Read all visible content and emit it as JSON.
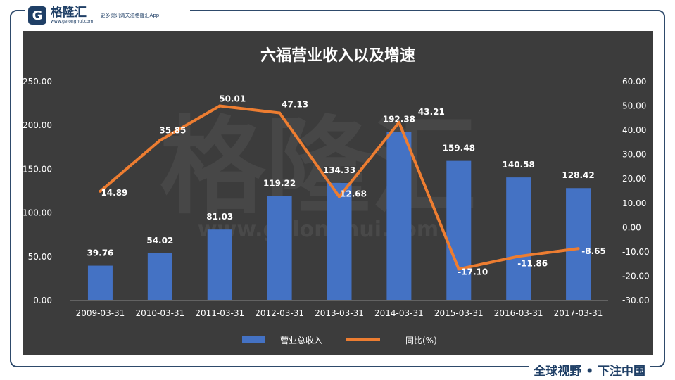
{
  "brand": {
    "name": "格隆汇",
    "domain": "www.gelonghui.com",
    "tagline": "更多资讯请关注格隆汇App",
    "watermark_text": "格隆汇",
    "watermark_url": "www.gelonghui.com"
  },
  "footer": {
    "slogan": "全球视野 • 下注中国"
  },
  "colors": {
    "bar": "#4472c4",
    "line": "#ed7d31",
    "background": "#3c3c3c",
    "frame": "#2e4a6b"
  },
  "chart_data": {
    "type": "bar",
    "title": "六福营业收入以及增速",
    "categories": [
      "2009-03-31",
      "2010-03-31",
      "2011-03-31",
      "2012-03-31",
      "2013-03-31",
      "2014-03-31",
      "2015-03-31",
      "2016-03-31",
      "2017-03-31"
    ],
    "series": [
      {
        "name": "营业总收入",
        "type": "bar",
        "axis": "left",
        "values": [
          39.76,
          54.02,
          81.03,
          119.22,
          134.33,
          192.38,
          159.48,
          140.58,
          128.42
        ],
        "labels": [
          "39.76",
          "54.02",
          "81.03",
          "119.22",
          "134.33",
          "192.38",
          "159.48",
          "140.58",
          "128.42"
        ]
      },
      {
        "name": "同比(%)",
        "type": "line",
        "axis": "right",
        "values": [
          14.89,
          35.85,
          50.01,
          47.13,
          12.68,
          43.21,
          -17.1,
          -11.86,
          -8.65
        ],
        "labels": [
          "14.89",
          "35.85",
          "50.01",
          "47.13",
          "12.68",
          "43.21",
          "-17.10",
          "-11.86",
          "-8.65"
        ]
      }
    ],
    "y_left": {
      "min": 0,
      "max": 250,
      "ticks": [
        "0.00",
        "50.00",
        "100.00",
        "150.00",
        "200.00",
        "250.00"
      ]
    },
    "y_right": {
      "min": -30,
      "max": 60,
      "ticks": [
        "-30.00",
        "-20.00",
        "-10.00",
        "0.00",
        "10.00",
        "20.00",
        "30.00",
        "40.00",
        "50.00",
        "60.00"
      ]
    },
    "grid": false,
    "legend_position": "bottom"
  }
}
